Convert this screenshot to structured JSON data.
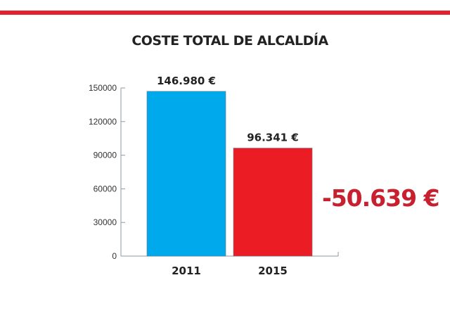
{
  "chart_data": {
    "type": "bar",
    "title": "COSTE TOTAL DE ALCALDÍA",
    "categories": [
      "2011",
      "2015"
    ],
    "values": [
      146980,
      96341
    ],
    "data_labels": [
      "146.980 €",
      "96.341 €"
    ],
    "colors": [
      "#00a8ec",
      "#ec1c24"
    ],
    "yticks": [
      0,
      30000,
      60000,
      90000,
      120000,
      150000
    ],
    "ylim": [
      0,
      150000
    ],
    "xlabel": "",
    "ylabel": "",
    "grid": false,
    "annotation": "-50.639 €",
    "annotation_color": "#c8202e"
  }
}
